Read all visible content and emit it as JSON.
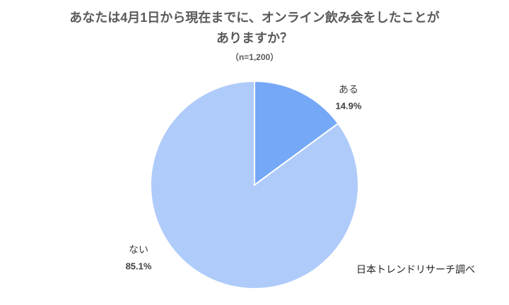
{
  "chart_data": {
    "type": "pie",
    "title": [
      "あなたは4月1日から現在までに、オンライン飲み会をしたことが",
      "ありますか？"
    ],
    "subtitle": "（n=1,200）",
    "categories": [
      "ある",
      "ない"
    ],
    "values": [
      14.9,
      85.1
    ],
    "value_labels": [
      "14.9%",
      "85.1%"
    ],
    "colors": [
      "#75a8f7",
      "#aecbfa"
    ],
    "source": "日本トレンドリサーチ調べ"
  }
}
